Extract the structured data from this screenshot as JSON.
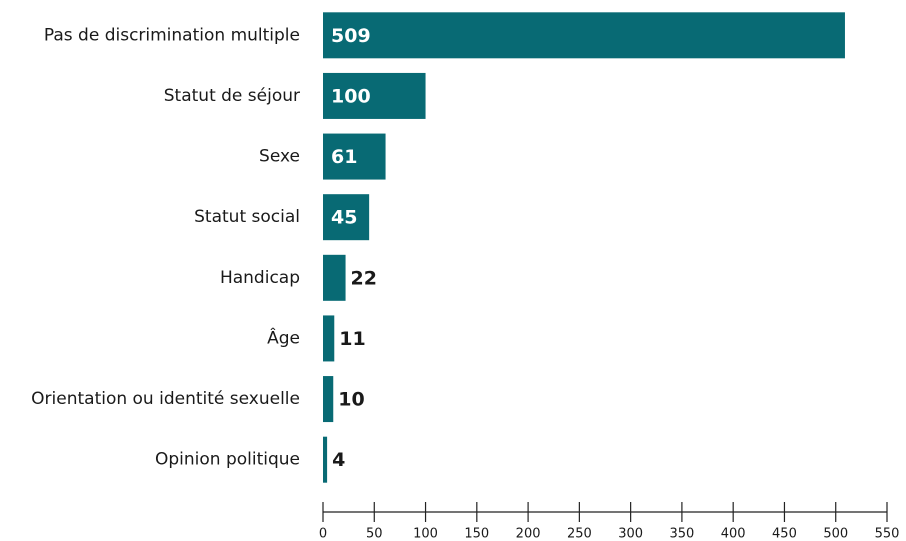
{
  "chart_data": {
    "type": "bar",
    "orientation": "horizontal",
    "categories": [
      "Pas de discrimination multiple",
      "Statut de séjour",
      "Sexe",
      "Statut social",
      "Handicap",
      "Âge",
      "Orientation ou identité sexuelle",
      "Opinion politique"
    ],
    "values": [
      509,
      100,
      61,
      45,
      22,
      11,
      10,
      4
    ],
    "color": "#086a74",
    "xlim": [
      0,
      550
    ],
    "xticks": [
      0,
      50,
      100,
      150,
      200,
      250,
      300,
      350,
      400,
      450,
      500,
      550
    ]
  }
}
